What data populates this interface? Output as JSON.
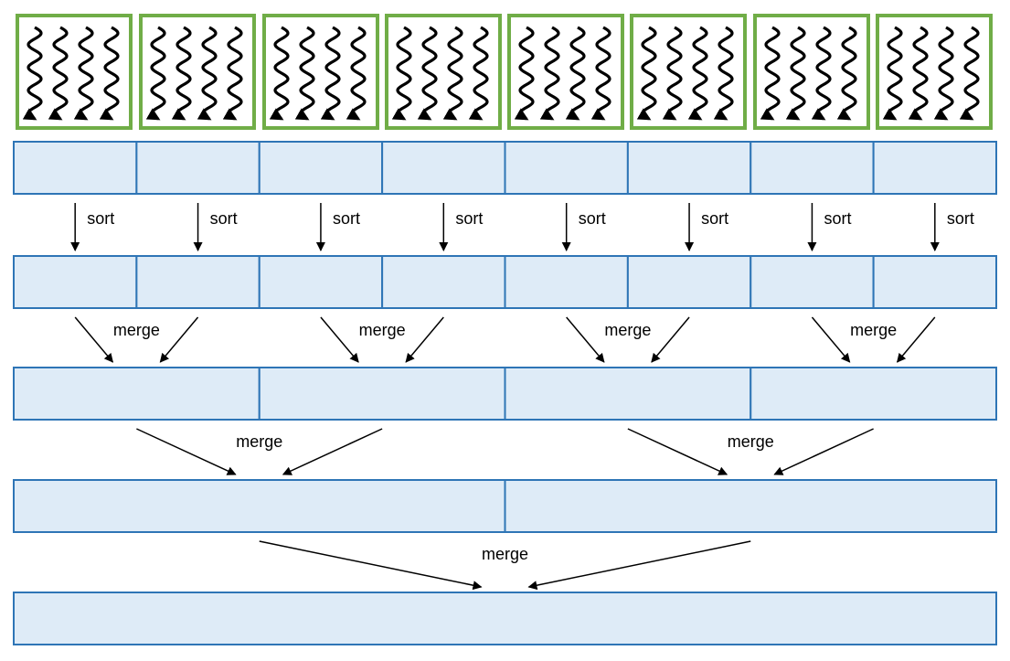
{
  "colors": {
    "thread_block_border": "#70ad47",
    "array_fill": "#deebf7",
    "array_border": "#2e75b6",
    "arrow": "#000000"
  },
  "icons": {
    "thread": "wavy-down-arrow-icon"
  },
  "thread_blocks": {
    "count": 8,
    "threads_per_block": 4
  },
  "levels": [
    {
      "name": "input",
      "segments": 8
    },
    {
      "name": "sorted",
      "segments": 8,
      "operation": "sort"
    },
    {
      "name": "merge-1",
      "segments": 4,
      "operation": "merge"
    },
    {
      "name": "merge-2",
      "segments": 2,
      "operation": "merge"
    },
    {
      "name": "merge-3",
      "segments": 1,
      "operation": "merge"
    }
  ],
  "labels": {
    "sort": "sort",
    "merge": "merge"
  }
}
